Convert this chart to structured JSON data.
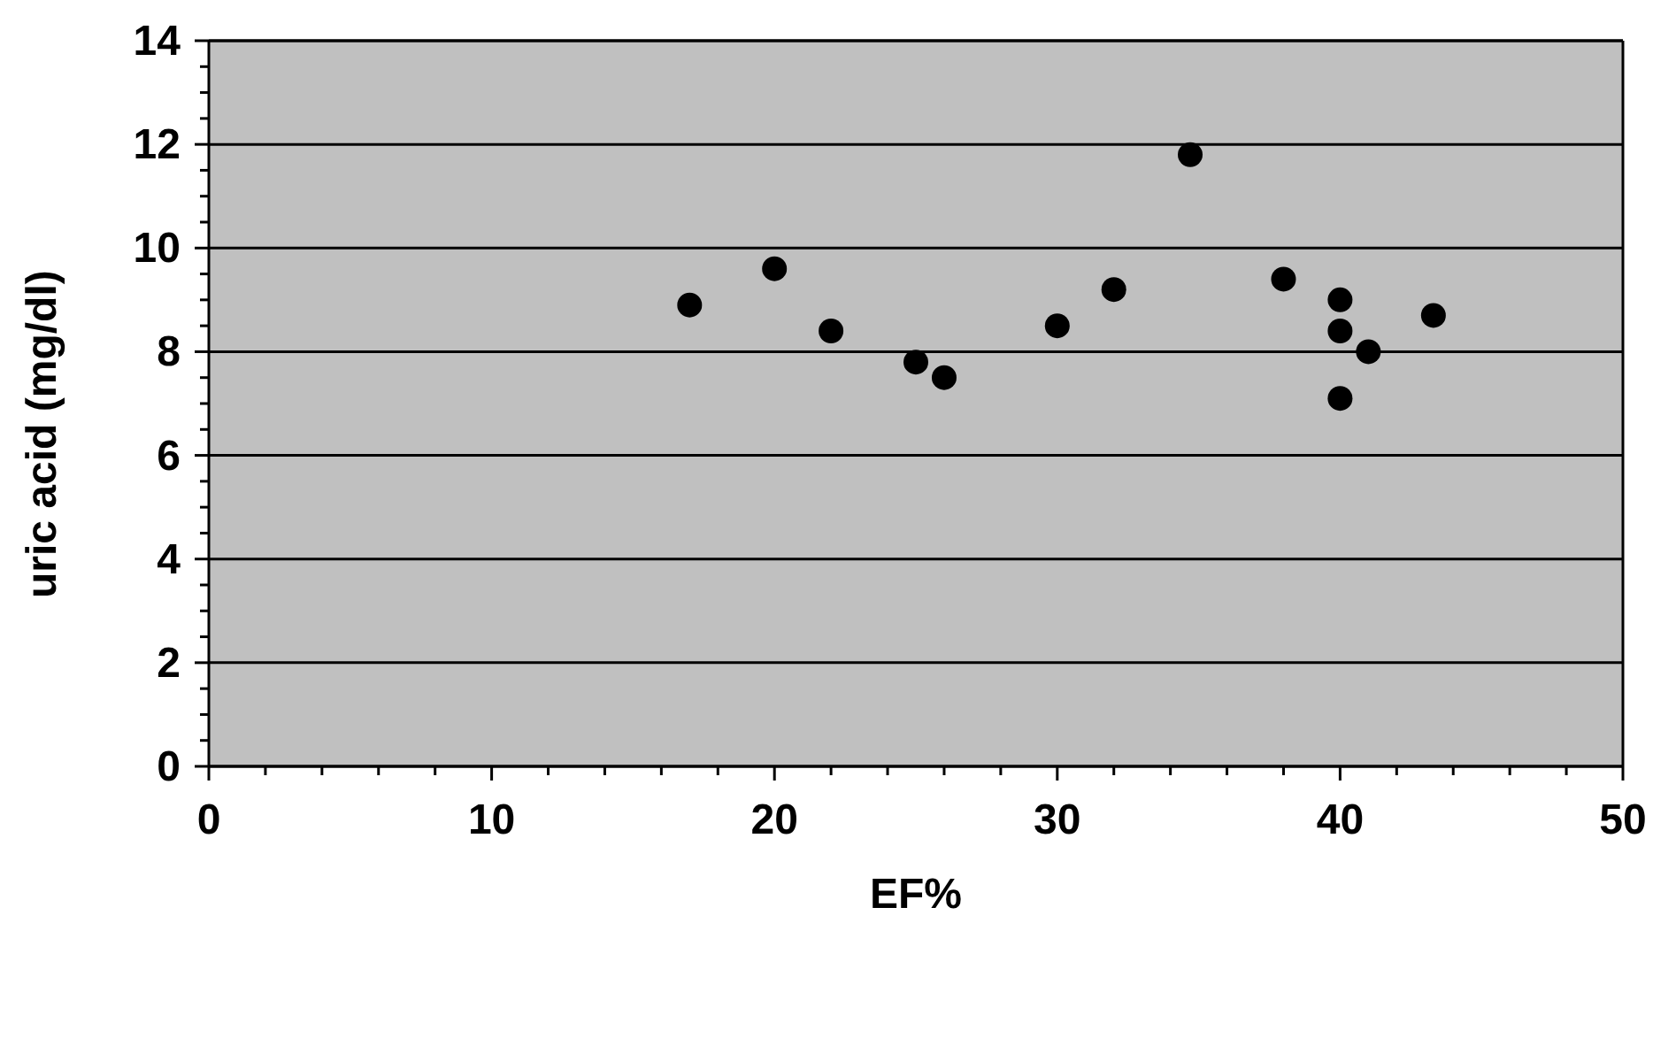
{
  "chart_data": {
    "type": "scatter",
    "xlabel": "EF%",
    "ylabel": "uric acid (mg/dl)",
    "x": [
      17,
      20,
      22,
      25,
      26,
      30,
      32,
      34.7,
      38,
      40,
      40,
      40,
      41,
      43.3
    ],
    "series": [
      {
        "color": "#000000",
        "values": [
          8.9,
          9.6,
          8.4,
          7.8,
          7.5,
          8.5,
          9.2,
          11.8,
          9.4,
          9.0,
          8.4,
          7.1,
          8.0,
          8.7
        ]
      }
    ],
    "xlim": [
      0,
      50
    ],
    "xticks": [
      0,
      {
        "value": 2,
        "label": null
      },
      {
        "value": 4,
        "label": null
      },
      {
        "value": 6,
        "label": null
      },
      {
        "value": 8,
        "label": null
      },
      10,
      {
        "value": 12,
        "label": null
      },
      {
        "value": 14,
        "label": null
      },
      {
        "value": 16,
        "label": null
      },
      {
        "value": 18,
        "label": null
      },
      20,
      {
        "value": 22,
        "label": null
      },
      {
        "value": 24,
        "label": null
      },
      {
        "value": 26,
        "label": null
      },
      {
        "value": 28,
        "label": null
      },
      30,
      {
        "value": 32,
        "label": null
      },
      {
        "value": 34,
        "label": null
      },
      {
        "value": 36,
        "label": null
      },
      {
        "value": 38,
        "label": null
      },
      40,
      {
        "value": 42,
        "label": null
      },
      {
        "value": 44,
        "label": null
      },
      {
        "value": 46,
        "label": null
      },
      {
        "value": 48,
        "label": null
      },
      50
    ],
    "ylim": [
      0,
      14
    ],
    "yticks": [
      0,
      {
        "value": 0.5,
        "label": null
      },
      {
        "value": 1,
        "label": null
      },
      {
        "value": 1.5,
        "label": null
      },
      2,
      {
        "value": 2.5,
        "label": null
      },
      {
        "value": 3,
        "label": null
      },
      {
        "value": 3.5,
        "label": null
      },
      4,
      {
        "value": 4.5,
        "label": null
      },
      {
        "value": 5,
        "label": null
      },
      {
        "value": 5.5,
        "label": null
      },
      6,
      {
        "value": 6.5,
        "label": null
      },
      {
        "value": 7,
        "label": null
      },
      {
        "value": 7.5,
        "label": null
      },
      8,
      {
        "value": 8.5,
        "label": null
      },
      {
        "value": 9,
        "label": null
      },
      {
        "value": 9.5,
        "label": null
      },
      10,
      {
        "value": 10.5,
        "label": null
      },
      {
        "value": 11,
        "label": null
      },
      {
        "value": 11.5,
        "label": null
      },
      12,
      {
        "value": 12.5,
        "label": null
      },
      {
        "value": 13,
        "label": null
      },
      {
        "value": 13.5,
        "label": null
      },
      14
    ],
    "grid": "y",
    "marker": "circle",
    "legend": false
  }
}
